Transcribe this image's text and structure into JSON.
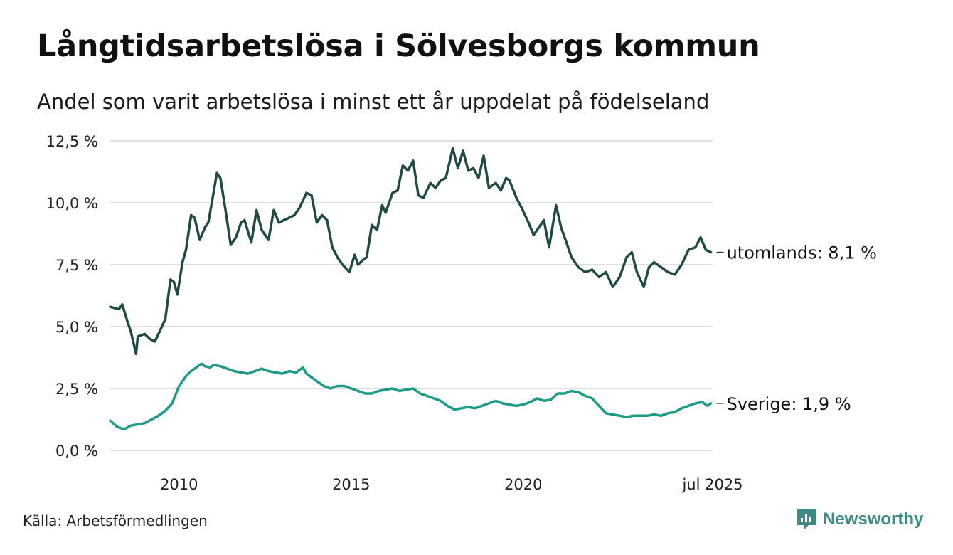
{
  "chart_data": {
    "type": "line",
    "title": "Långtidsarbetslösa i Sölvesborgs kommun",
    "subtitle": "Andel som varit arbetslösa i minst ett år uppdelat på födelseland",
    "xlabel": "",
    "ylabel": "",
    "ylim": [
      0,
      12.5
    ],
    "xlim": [
      2008.0,
      2025.5
    ],
    "yticks": [
      0,
      2.5,
      5,
      7.5,
      10,
      12.5
    ],
    "ytick_labels": [
      "0,0 %",
      "2,5 %",
      "5,0 %",
      "7,5 %",
      "10,0 %",
      "12,5 %"
    ],
    "xticks": [
      2010,
      2015,
      2020,
      2025.5
    ],
    "xtick_labels": [
      "2010",
      "2015",
      "2020",
      "jul 2025"
    ],
    "grid": true,
    "legend": "none",
    "series": [
      {
        "name": "utomlands",
        "end_label": "utomlands: 8,1 %",
        "color": "#224a44",
        "x": [
          2008.0,
          2008.25,
          2008.35,
          2008.5,
          2008.6,
          2008.75,
          2008.8,
          2009.0,
          2009.15,
          2009.3,
          2009.5,
          2009.6,
          2009.75,
          2009.85,
          2009.95,
          2010.1,
          2010.2,
          2010.35,
          2010.45,
          2010.6,
          2010.75,
          2010.85,
          2010.95,
          2011.1,
          2011.2,
          2011.35,
          2011.5,
          2011.65,
          2011.8,
          2011.9,
          2012.1,
          2012.25,
          2012.4,
          2012.6,
          2012.75,
          2012.9,
          2013.05,
          2013.2,
          2013.35,
          2013.5,
          2013.7,
          2013.85,
          2014.0,
          2014.15,
          2014.3,
          2014.45,
          2014.6,
          2014.75,
          2014.95,
          2015.1,
          2015.2,
          2015.35,
          2015.45,
          2015.6,
          2015.75,
          2015.9,
          2016.0,
          2016.2,
          2016.35,
          2016.5,
          2016.65,
          2016.8,
          2016.95,
          2017.1,
          2017.3,
          2017.45,
          2017.6,
          2017.75,
          2017.95,
          2018.1,
          2018.25,
          2018.4,
          2018.55,
          2018.7,
          2018.85,
          2019.0,
          2019.2,
          2019.35,
          2019.5,
          2019.6,
          2019.8,
          2019.95,
          2020.15,
          2020.3,
          2020.45,
          2020.6,
          2020.75,
          2020.95,
          2021.1,
          2021.2,
          2021.4,
          2021.6,
          2021.8,
          2022.0,
          2022.2,
          2022.4,
          2022.6,
          2022.8,
          2023.0,
          2023.15,
          2023.3,
          2023.5,
          2023.65,
          2023.8,
          2024.0,
          2024.2,
          2024.4,
          2024.6,
          2024.8,
          2025.0,
          2025.15,
          2025.3,
          2025.45
        ],
        "values": [
          5.8,
          5.7,
          5.9,
          5.2,
          4.8,
          3.9,
          4.6,
          4.7,
          4.5,
          4.4,
          5.0,
          5.3,
          6.9,
          6.8,
          6.3,
          7.6,
          8.1,
          9.5,
          9.4,
          8.5,
          9.0,
          9.2,
          10.0,
          11.2,
          11.0,
          9.7,
          8.3,
          8.6,
          9.2,
          9.3,
          8.4,
          9.7,
          8.9,
          8.5,
          9.7,
          9.2,
          9.3,
          9.4,
          9.5,
          9.8,
          10.4,
          10.3,
          9.2,
          9.5,
          9.3,
          8.2,
          7.8,
          7.5,
          7.2,
          7.9,
          7.5,
          7.7,
          7.8,
          9.1,
          8.9,
          9.9,
          9.6,
          10.4,
          10.5,
          11.5,
          11.3,
          11.7,
          10.3,
          10.2,
          10.8,
          10.6,
          10.9,
          11.0,
          12.2,
          11.4,
          12.1,
          11.3,
          11.4,
          11.0,
          11.9,
          10.6,
          10.8,
          10.5,
          11.0,
          10.9,
          10.2,
          9.8,
          9.2,
          8.7,
          9.0,
          9.3,
          8.2,
          9.9,
          9.0,
          8.6,
          7.8,
          7.4,
          7.2,
          7.3,
          7.0,
          7.2,
          6.6,
          7.0,
          7.8,
          8.0,
          7.2,
          6.6,
          7.4,
          7.6,
          7.4,
          7.2,
          7.1,
          7.5,
          8.1,
          8.2,
          8.6,
          8.1,
          8.0
        ]
      },
      {
        "name": "Sverige",
        "end_label": "Sverige: 1,9 %",
        "color": "#1f9a88",
        "x": [
          2008.0,
          2008.2,
          2008.4,
          2008.6,
          2008.8,
          2009.0,
          2009.2,
          2009.4,
          2009.6,
          2009.8,
          2010.0,
          2010.2,
          2010.35,
          2010.5,
          2010.65,
          2010.75,
          2010.9,
          2011.0,
          2011.2,
          2011.4,
          2011.6,
          2011.8,
          2012.0,
          2012.2,
          2012.4,
          2012.6,
          2012.8,
          2013.0,
          2013.2,
          2013.4,
          2013.6,
          2013.7,
          2013.8,
          2014.0,
          2014.2,
          2014.4,
          2014.6,
          2014.8,
          2015.0,
          2015.2,
          2015.4,
          2015.6,
          2015.8,
          2016.0,
          2016.2,
          2016.4,
          2016.6,
          2016.8,
          2017.0,
          2017.2,
          2017.4,
          2017.6,
          2017.8,
          2018.0,
          2018.2,
          2018.4,
          2018.6,
          2018.8,
          2019.0,
          2019.2,
          2019.4,
          2019.6,
          2019.8,
          2020.0,
          2020.2,
          2020.4,
          2020.6,
          2020.8,
          2021.0,
          2021.2,
          2021.4,
          2021.6,
          2021.8,
          2022.0,
          2022.2,
          2022.4,
          2022.6,
          2022.8,
          2023.0,
          2023.2,
          2023.4,
          2023.6,
          2023.8,
          2024.0,
          2024.2,
          2024.4,
          2024.6,
          2024.8,
          2025.0,
          2025.2,
          2025.35,
          2025.45
        ],
        "values": [
          1.2,
          0.95,
          0.85,
          1.0,
          1.05,
          1.1,
          1.25,
          1.4,
          1.6,
          1.9,
          2.6,
          3.0,
          3.2,
          3.35,
          3.5,
          3.4,
          3.35,
          3.45,
          3.4,
          3.3,
          3.2,
          3.15,
          3.1,
          3.2,
          3.3,
          3.2,
          3.15,
          3.1,
          3.2,
          3.15,
          3.35,
          3.1,
          3.0,
          2.8,
          2.6,
          2.5,
          2.6,
          2.6,
          2.5,
          2.4,
          2.3,
          2.3,
          2.4,
          2.45,
          2.5,
          2.4,
          2.45,
          2.5,
          2.3,
          2.2,
          2.1,
          2.0,
          1.8,
          1.65,
          1.7,
          1.75,
          1.7,
          1.8,
          1.9,
          2.0,
          1.9,
          1.85,
          1.8,
          1.85,
          1.95,
          2.1,
          2.0,
          2.05,
          2.3,
          2.3,
          2.4,
          2.35,
          2.2,
          2.1,
          1.8,
          1.5,
          1.45,
          1.4,
          1.35,
          1.4,
          1.4,
          1.4,
          1.45,
          1.4,
          1.5,
          1.55,
          1.7,
          1.8,
          1.9,
          1.95,
          1.8,
          1.9
        ]
      }
    ],
    "source": "Källa: Arbetsförmedlingen",
    "brand": "Newsworthy"
  }
}
